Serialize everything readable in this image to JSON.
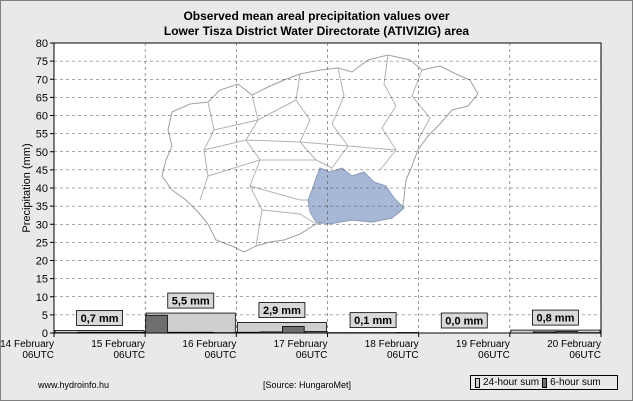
{
  "title_line1": "Observed mean areal precipitation values over",
  "title_line2": "Lower Tisza District Water Directorate (ATIVIZIG) area",
  "footer": {
    "site": "www.hydroinfo.hu",
    "source": "[Source: HungaroMet]"
  },
  "legend": {
    "sum24": "24-hour sum",
    "sum6": "6-hour sum"
  },
  "colors": {
    "background": "#e9e9e9",
    "bar24": "#cfcfcf",
    "bar6": "#6e6e6e",
    "region_fill": "#a7b7d6",
    "map_outline": "#a0a0a0",
    "grid": "#555555"
  },
  "chart_data": {
    "type": "bar",
    "ylabel": "Precipitation (mm)",
    "ylim": [
      0,
      80
    ],
    "yticks": [
      0,
      5,
      10,
      15,
      20,
      25,
      30,
      35,
      40,
      45,
      50,
      55,
      60,
      65,
      70,
      75,
      80
    ],
    "x_ticks": [
      {
        "date": "14 February",
        "time": "06UTC"
      },
      {
        "date": "15 February",
        "time": "06UTC"
      },
      {
        "date": "16 February",
        "time": "06UTC"
      },
      {
        "date": "17 February",
        "time": "06UTC"
      },
      {
        "date": "18 February",
        "time": "06UTC"
      },
      {
        "date": "19 February",
        "time": "06UTC"
      },
      {
        "date": "20 February",
        "time": "06UTC"
      }
    ],
    "grid": true,
    "series": [
      {
        "name": "24-hour sum",
        "values": [
          0.7,
          5.5,
          2.9,
          0.1,
          0.0,
          0.8
        ]
      },
      {
        "name": "6-hour sum",
        "values": [
          0.1,
          0.2,
          0.2,
          0.2,
          4.9,
          0.2,
          0.2,
          0.1,
          0.2,
          0.3,
          1.8,
          0.4,
          0.0,
          0.0,
          0.0,
          0.1,
          0.0,
          0.0,
          0.0,
          0.0,
          0.0,
          0.3,
          0.4,
          0.1
        ]
      }
    ],
    "annotations": [
      "0,7 mm",
      "5,5 mm",
      "2,9 mm",
      "0,1 mm",
      "0,0 mm",
      "0,8 mm"
    ]
  }
}
